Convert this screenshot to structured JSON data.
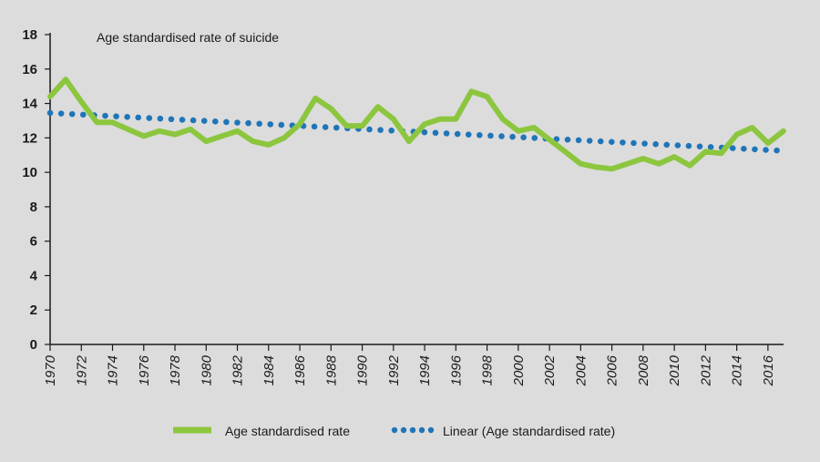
{
  "chart_data": {
    "type": "line",
    "title": "",
    "annotation": "Age standardised rate of suicide",
    "xlabel": "",
    "ylabel": "",
    "xlim": [
      1970,
      2017
    ],
    "ylim": [
      0,
      18
    ],
    "yticks": [
      0,
      2,
      4,
      6,
      8,
      10,
      12,
      14,
      16,
      18
    ],
    "xticks": [
      1970,
      1972,
      1974,
      1976,
      1978,
      1980,
      1982,
      1984,
      1986,
      1988,
      1990,
      1992,
      1994,
      1996,
      1998,
      2000,
      2002,
      2004,
      2006,
      2008,
      2010,
      2012,
      2014,
      2016
    ],
    "grid": false,
    "legend_position": "bottom",
    "x": [
      1970,
      1971,
      1972,
      1973,
      1974,
      1975,
      1976,
      1977,
      1978,
      1979,
      1980,
      1981,
      1982,
      1983,
      1984,
      1985,
      1986,
      1987,
      1988,
      1989,
      1990,
      1991,
      1992,
      1993,
      1994,
      1995,
      1996,
      1997,
      1998,
      1999,
      2000,
      2001,
      2002,
      2003,
      2004,
      2005,
      2006,
      2007,
      2008,
      2009,
      2010,
      2011,
      2012,
      2013,
      2014,
      2015,
      2016,
      2017
    ],
    "series": [
      {
        "name": "Age standardised rate",
        "color": "#8cc63f",
        "style": "solid",
        "values": [
          14.4,
          15.4,
          14.1,
          12.9,
          12.9,
          12.5,
          12.1,
          12.4,
          12.2,
          12.5,
          11.8,
          12.1,
          12.4,
          11.8,
          11.6,
          12.0,
          12.8,
          14.3,
          13.7,
          12.7,
          12.7,
          13.8,
          13.1,
          11.8,
          12.8,
          13.1,
          13.1,
          14.7,
          14.4,
          13.1,
          12.4,
          12.6,
          11.9,
          11.2,
          10.5,
          10.3,
          10.2,
          10.5,
          10.8,
          10.5,
          10.9,
          10.4,
          11.2,
          11.1,
          12.2,
          12.6,
          11.7,
          12.4
        ]
      },
      {
        "name": "Linear (Age standardised rate)",
        "color": "#1f75b8",
        "style": "dotted",
        "values_start_end": [
          13.45,
          11.25
        ]
      }
    ]
  }
}
